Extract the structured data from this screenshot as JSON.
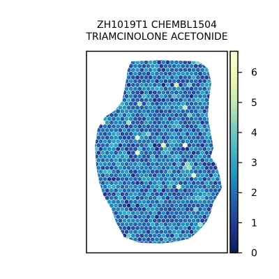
{
  "chart_data": {
    "type": "heatmap",
    "subtype": "spatial hexagonal spot map",
    "title_lines": [
      "ZH1019T1 CHEMBL1504",
      "TRIAMCINOLONE ACETONIDE"
    ],
    "xlabel": "",
    "ylabel": "",
    "colormap": "YlGnBu_r",
    "colorbar": {
      "range": [
        0,
        6.7
      ],
      "ticks": [
        0,
        1,
        2,
        3,
        4,
        5,
        6
      ],
      "tick_labels": [
        "0",
        "1",
        "2",
        "3",
        "4",
        "5",
        "6"
      ]
    },
    "value_distribution": {
      "typical_range": [
        0.5,
        3.5
      ],
      "typical_center": 2.0,
      "max_observed": 6.7
    },
    "grid": false,
    "axes_ticks_visible": false
  },
  "colors": {
    "colormap_stops": [
      "#081d58",
      "#253494",
      "#225ea8",
      "#1d91c0",
      "#41b6c4",
      "#7fcdbb",
      "#c7e9b4",
      "#edf8b1",
      "#ffffd9"
    ],
    "axes_frame": "#000000",
    "background": "#ffffff"
  }
}
